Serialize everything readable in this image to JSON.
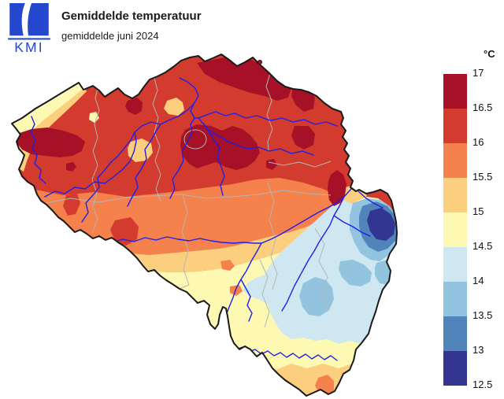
{
  "header": {
    "title": "Gemiddelde temperatuur",
    "subtitle": "gemiddelde juni 2024",
    "logo_text": "KMI",
    "logo_color": "#2447CE"
  },
  "chart_data": {
    "type": "heatmap",
    "map": "Belgium choropleth (temperature contour map)",
    "title": "Gemiddelde temperatuur",
    "subtitle": "gemiddelde juni 2024",
    "unit": "°C",
    "legend": {
      "position": "right",
      "orientation": "vertical",
      "tick_labels": [
        "17",
        "16.5",
        "16",
        "15.5",
        "15",
        "14.5",
        "14",
        "13.5",
        "13",
        "12.5"
      ],
      "levels_c": [
        12.5,
        13,
        13.5,
        14,
        14.5,
        15,
        15.5,
        16,
        16.5,
        17
      ],
      "colors_low_to_high": [
        "#333591",
        "#5284BC",
        "#92C4DF",
        "#CFE7F0",
        "#FDF9B3",
        "#FCCF7F",
        "#F5814D",
        "#D23B2E",
        "#A61127"
      ]
    },
    "map_colors": {
      "country_outline": "#1A1A1A",
      "province_border": "#B5B5B5",
      "river": "#2020E8",
      "background": "#FFFFFF"
    },
    "region_values": [
      {
        "area": "coastal strip (northwest)",
        "temperature_c": "14.5–15.5"
      },
      {
        "area": "Flanders and central lowlands",
        "temperature_c": "16–16.5"
      },
      {
        "area": "Kempen / northern patches",
        "temperature_c": "16.5–17"
      },
      {
        "area": "central Brabant patch",
        "temperature_c": "16.5–17"
      },
      {
        "area": "middle belt (Hainaut–Hesbaye)",
        "temperature_c": "15.5–16"
      },
      {
        "area": "Condroz / Famenne belt",
        "temperature_c": "14.5–15.5"
      },
      {
        "area": "Ardennes plateau (southeast)",
        "temperature_c": "13.5–14.5"
      },
      {
        "area": "High Fens (eastern border)",
        "temperature_c": "12.5–13"
      },
      {
        "area": "far south (Gaume / Arlon)",
        "temperature_c": "15–16"
      }
    ]
  }
}
